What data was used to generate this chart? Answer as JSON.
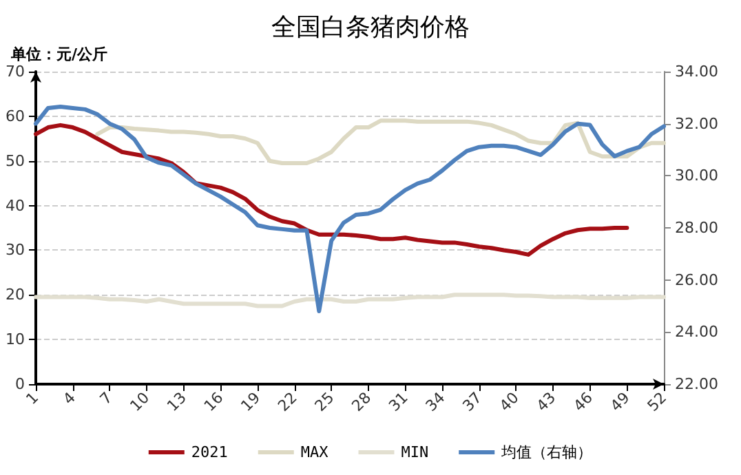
{
  "chart_data": {
    "type": "line",
    "title": "全国白条猪肉价格",
    "ylabel": "单位：元/公斤",
    "categories": [
      "1",
      null,
      null,
      "4",
      null,
      null,
      "7",
      null,
      null,
      "10",
      null,
      null,
      "13",
      null,
      null,
      "16",
      null,
      null,
      "19",
      null,
      null,
      "22",
      null,
      null,
      "25",
      null,
      null,
      "28",
      null,
      null,
      "31",
      null,
      null,
      "34",
      null,
      null,
      "37",
      null,
      null,
      "40",
      null,
      null,
      "43",
      null,
      null,
      "46",
      null,
      null,
      "49",
      null,
      null,
      "52"
    ],
    "series": [
      {
        "name": "2021",
        "color": "#a50f15",
        "values": [
          56,
          57.5,
          58,
          57.5,
          56.5,
          55,
          53.5,
          52,
          51.5,
          51,
          50.5,
          49.5,
          47.5,
          45,
          44.5,
          44,
          43,
          41.5,
          39,
          37.5,
          36.5,
          36,
          34.5,
          33.5,
          33.5,
          33.5,
          33.3,
          33,
          32.5,
          32.5,
          32.8,
          32.3,
          32,
          31.7,
          31.7,
          31.3,
          30.8,
          30.5,
          30,
          29.6,
          29,
          31,
          32.5,
          33.8,
          34.5,
          34.8,
          34.8,
          35,
          35,
          null,
          null,
          null
        ]
      },
      {
        "name": "MAX",
        "color": "#ddd9c3",
        "values": [
          null,
          null,
          null,
          null,
          null,
          56,
          57.5,
          57.5,
          57.2,
          57,
          56.8,
          56.5,
          56.5,
          56.3,
          56,
          55.5,
          55.5,
          55,
          54,
          50,
          49.5,
          49.5,
          49.5,
          50.5,
          52,
          55,
          57.5,
          57.5,
          59,
          59,
          59,
          58.8,
          58.8,
          58.8,
          58.8,
          58.8,
          58.5,
          58,
          57,
          56,
          54.5,
          54,
          54,
          58,
          58.5,
          52,
          51,
          51,
          51,
          53,
          54,
          54
        ]
      },
      {
        "name": "MIN",
        "color": "#e2dfd0",
        "values": [
          19.5,
          19.5,
          19.5,
          19.5,
          19.5,
          19.3,
          19,
          19,
          18.8,
          18.5,
          19,
          18.5,
          18,
          18,
          18,
          18,
          18,
          18,
          17.5,
          17.5,
          17.5,
          18.5,
          19,
          19,
          19,
          18.5,
          18.5,
          19,
          19,
          19,
          19.3,
          19.5,
          19.5,
          19.5,
          20,
          20,
          20,
          20,
          20,
          19.8,
          19.8,
          19.7,
          19.5,
          19.5,
          19.5,
          19.3,
          19.3,
          19.3,
          19.3,
          19.5,
          19.5,
          19.5
        ]
      },
      {
        "name": "均值（右轴）",
        "color": "#4f81bd",
        "axis": "y2",
        "values": [
          32,
          32.6,
          32.65,
          32.6,
          32.55,
          32.36,
          32,
          31.8,
          31.4,
          30.7,
          30.5,
          30.4,
          30.05,
          29.7,
          29.45,
          29.2,
          28.9,
          28.6,
          28.1,
          28,
          27.95,
          27.9,
          27.9,
          24.8,
          27.5,
          28.2,
          28.5,
          28.55,
          28.7,
          29.1,
          29.45,
          29.7,
          29.85,
          30.2,
          30.6,
          30.95,
          31.1,
          31.15,
          31.15,
          31.1,
          30.95,
          30.8,
          31.2,
          31.7,
          32,
          31.95,
          31.2,
          30.75,
          30.95,
          31.1,
          31.6,
          31.9
        ]
      }
    ],
    "ylim": [
      0,
      70
    ],
    "yticks": [
      0,
      10,
      20,
      30,
      40,
      50,
      60,
      70
    ],
    "y2lim": [
      22,
      34
    ],
    "y2ticks": [
      {
        "value": 22,
        "label": "22.00"
      },
      {
        "value": 24,
        "label": "24.00"
      },
      {
        "value": 26,
        "label": "26.00"
      },
      {
        "value": 28,
        "label": "28.00"
      },
      {
        "value": 30,
        "label": "30.00"
      },
      {
        "value": 32,
        "label": "32.00"
      },
      {
        "value": 34,
        "label": "34.00"
      }
    ],
    "grid": "y",
    "legend": "bottom",
    "marker": "none",
    "line_style": "solid"
  }
}
